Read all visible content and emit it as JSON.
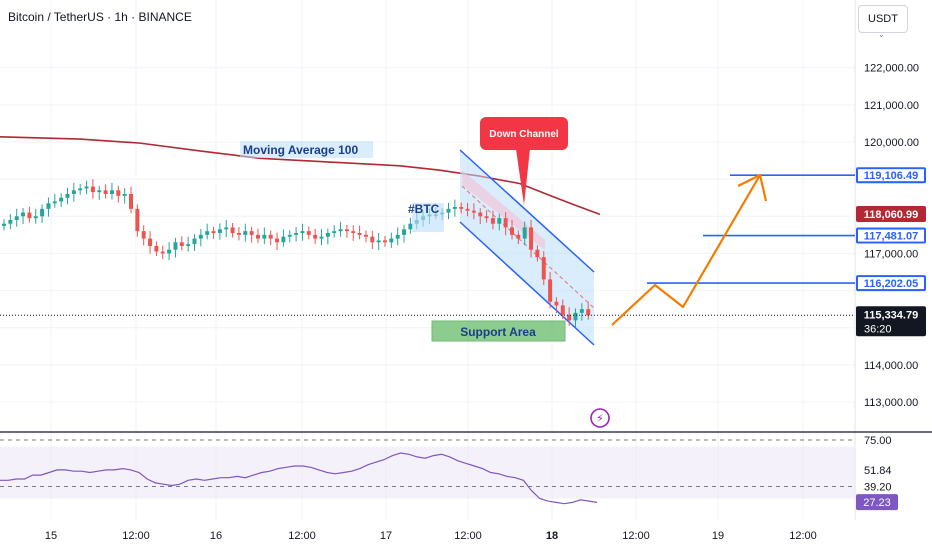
{
  "header": {
    "title": "Bitcoin / TetherUS · 1h · BINANCE"
  },
  "currency_button": {
    "label": "USDT"
  },
  "chart_data": {
    "type": "candlestick",
    "title": "Bitcoin / TetherUS · 1h · BINANCE",
    "y_ticks": [
      {
        "value": 122000,
        "label": "122,000.00"
      },
      {
        "value": 121000,
        "label": "121,000.00"
      },
      {
        "value": 120000,
        "label": "120,000.00"
      },
      {
        "value": 117000,
        "label": "117,000.00"
      },
      {
        "value": 114000,
        "label": "114,000.00"
      },
      {
        "value": 113000,
        "label": "113,000.00"
      }
    ],
    "x_ticks": [
      "15",
      "12:00",
      "16",
      "12:00",
      "17",
      "12:00",
      "18",
      "12:00",
      "19",
      "12:00"
    ],
    "price_levels": [
      {
        "value": 119106.49,
        "label": "119,106.49",
        "color": "#2962ff"
      },
      {
        "value": 117481.07,
        "label": "117,481.07",
        "color": "#2962ff"
      },
      {
        "value": 116202.05,
        "label": "116,202.05",
        "color": "#2962ff"
      }
    ],
    "ma_label": {
      "value": 118060.99,
      "label": "118,060.99",
      "color": "#b22833"
    },
    "last_price": {
      "value": 115334.79,
      "label": "115,334.79",
      "countdown": "36:20"
    },
    "moving_average": {
      "name": "Moving Average 100",
      "color": "#b22833",
      "points": [
        [
          0,
          120140
        ],
        [
          80,
          120080
        ],
        [
          140,
          119970
        ],
        [
          200,
          119760
        ],
        [
          260,
          119560
        ],
        [
          330,
          119460
        ],
        [
          400,
          119360
        ],
        [
          440,
          119240
        ],
        [
          480,
          119080
        ],
        [
          520,
          118880
        ],
        [
          550,
          118560
        ],
        [
          575,
          118300
        ],
        [
          600,
          118050
        ]
      ]
    },
    "close_series": [
      117800,
      117900,
      118000,
      118100,
      117950,
      118000,
      118200,
      118350,
      118400,
      118500,
      118600,
      118700,
      118750,
      118800,
      118650,
      118700,
      118600,
      118700,
      118550,
      118600,
      118200,
      117600,
      117400,
      117200,
      117050,
      117000,
      117100,
      117300,
      117200,
      117250,
      117400,
      117500,
      117600,
      117550,
      117650,
      117700,
      117550,
      117500,
      117600,
      117500,
      117400,
      117500,
      117400,
      117300,
      117450,
      117500,
      117550,
      117600,
      117500,
      117400,
      117450,
      117550,
      117600,
      117650,
      117600,
      117550,
      117500,
      117450,
      117300,
      117350,
      117300,
      117400,
      117500,
      117650,
      117800,
      117900,
      118000,
      118050,
      118050,
      118100,
      118200,
      118250,
      118200,
      118150,
      118100,
      118000,
      117950,
      117800,
      117950,
      117700,
      117500,
      117400,
      117700,
      117100,
      116900,
      116300,
      115700,
      115600,
      115350,
      115200,
      115400,
      115500,
      115335
    ],
    "annotations": {
      "down_channel": "Down Channel",
      "support": "Support Area",
      "ticker": "#BTC",
      "ma_text": "Moving Average 100"
    },
    "projection": {
      "color": "#f57c00",
      "points": [
        [
          612,
          325
        ],
        [
          655,
          285
        ],
        [
          683,
          307
        ],
        [
          760,
          175
        ]
      ]
    },
    "rsi": {
      "levels": [
        {
          "value": 75,
          "label": "75.00"
        },
        {
          "value": 51.84,
          "label": "51.84"
        },
        {
          "value": 39.2,
          "label": "39.20"
        },
        {
          "value": 27.23,
          "label": "27.23"
        }
      ],
      "values": [
        44,
        44,
        45,
        45,
        48,
        48,
        50,
        52,
        52,
        51,
        51,
        50,
        51,
        52,
        52,
        53,
        52,
        50,
        45,
        42,
        41,
        40,
        41,
        44,
        45,
        44,
        45,
        46,
        46,
        47,
        46,
        48,
        50,
        51,
        53,
        54,
        55,
        55,
        54,
        52,
        50,
        49,
        50,
        51,
        53,
        56,
        58,
        60,
        63,
        65,
        64,
        62,
        61,
        63,
        64,
        62,
        59,
        57,
        55,
        53,
        50,
        49,
        47,
        46,
        44,
        36,
        30,
        28,
        27,
        26,
        27,
        29,
        28,
        27
      ]
    },
    "grid": true
  }
}
